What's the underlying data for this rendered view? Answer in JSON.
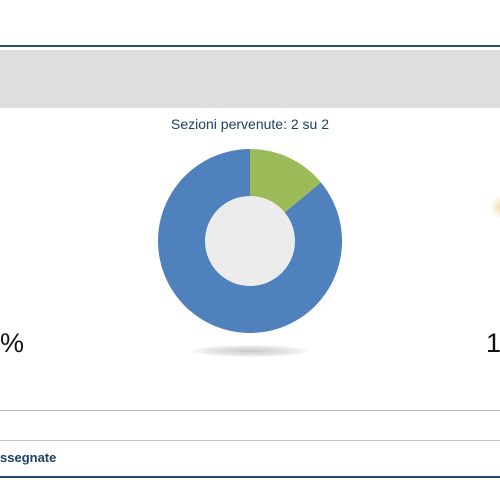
{
  "header": {
    "title": ""
  },
  "sections": {
    "title": "Sezioni pervenute: 2 su 2",
    "chart": {
      "type": "pie",
      "slices": [
        {
          "label": "",
          "value": 86,
          "color": "#4f81bd"
        },
        {
          "label": "",
          "value": 14,
          "color": "#9bbb59"
        }
      ],
      "hole_color": "#ececec"
    }
  },
  "left_value": "%",
  "right_value": "1",
  "footer": {
    "label": "ssegnate"
  },
  "chart_data": {
    "type": "pie",
    "categories": [
      "",
      ""
    ],
    "values": [
      86,
      14
    ],
    "colors": [
      "#4f81bd",
      "#9bbb59"
    ],
    "title": "Sezioni pervenute: 2 su 2"
  }
}
